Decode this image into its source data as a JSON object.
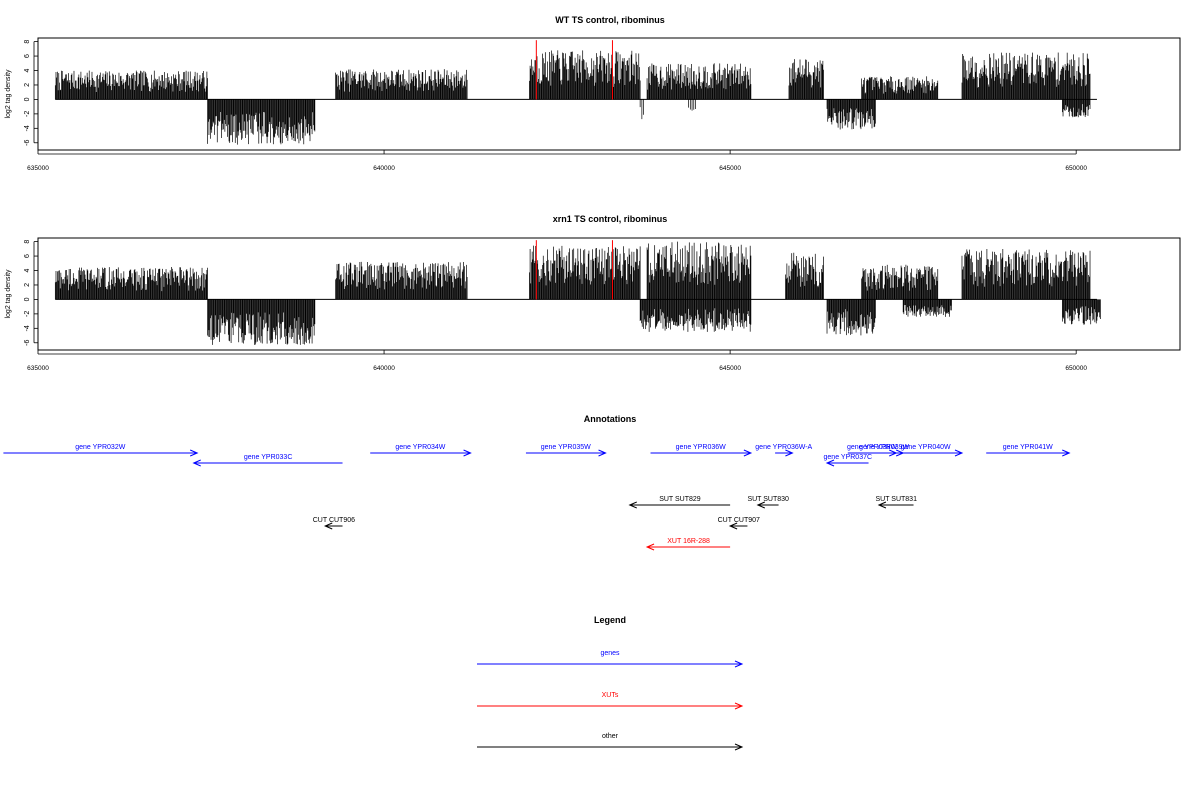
{
  "chart_data": [
    {
      "type": "bar",
      "title": "WT TS control, ribominus",
      "xlabel": "",
      "ylabel": "log2 tag density",
      "xlim": [
        635000,
        651500
      ],
      "ylim": [
        -7,
        8.5
      ],
      "xticks": [
        635000,
        640000,
        645000,
        650000
      ],
      "yticks": [
        -6,
        -4,
        -2,
        0,
        2,
        4,
        6,
        8
      ],
      "baseline_range": [
        635250,
        650300
      ],
      "red_markers": [
        642200,
        643300
      ],
      "plus_strand_regions": [
        {
          "start": 635250,
          "end": 637450,
          "max": 4.0
        },
        {
          "start": 639300,
          "end": 641200,
          "max": 4.2
        },
        {
          "start": 642100,
          "end": 643700,
          "max": 6.8
        },
        {
          "start": 643800,
          "end": 645300,
          "max": 5.0
        },
        {
          "start": 645850,
          "end": 646350,
          "max": 5.8
        },
        {
          "start": 646900,
          "end": 648000,
          "max": 3.2
        },
        {
          "start": 648350,
          "end": 650200,
          "max": 6.5
        }
      ],
      "minus_strand_regions": [
        {
          "start": 637450,
          "end": 639000,
          "min": -6.3
        },
        {
          "start": 643700,
          "end": 643750,
          "min": -3.0
        },
        {
          "start": 644400,
          "end": 644500,
          "min": -2.0
        },
        {
          "start": 646400,
          "end": 647100,
          "min": -4.2
        },
        {
          "start": 649800,
          "end": 650200,
          "min": -2.5
        }
      ]
    },
    {
      "type": "bar",
      "title": "xrn1 TS control, ribominus",
      "xlabel": "",
      "ylabel": "log2 tag density",
      "xlim": [
        635000,
        651500
      ],
      "ylim": [
        -7,
        8.5
      ],
      "xticks": [
        635000,
        640000,
        645000,
        650000
      ],
      "yticks": [
        -6,
        -4,
        -2,
        0,
        2,
        4,
        6,
        8
      ],
      "baseline_range": [
        635250,
        650300
      ],
      "red_markers": [
        642200,
        643300
      ],
      "plus_strand_regions": [
        {
          "start": 635250,
          "end": 637450,
          "max": 4.5
        },
        {
          "start": 639300,
          "end": 641200,
          "max": 5.2
        },
        {
          "start": 642100,
          "end": 643700,
          "max": 7.5
        },
        {
          "start": 643800,
          "end": 645300,
          "max": 8.0
        },
        {
          "start": 645800,
          "end": 646350,
          "max": 6.5
        },
        {
          "start": 646900,
          "end": 648000,
          "max": 4.8
        },
        {
          "start": 648350,
          "end": 650200,
          "max": 7.0
        }
      ],
      "minus_strand_regions": [
        {
          "start": 637450,
          "end": 639000,
          "min": -6.3
        },
        {
          "start": 643700,
          "end": 645300,
          "min": -4.5
        },
        {
          "start": 646400,
          "end": 647100,
          "min": -5.0
        },
        {
          "start": 647500,
          "end": 648200,
          "min": -2.5
        },
        {
          "start": 649800,
          "end": 650350,
          "min": -3.5
        }
      ]
    }
  ],
  "annotations": {
    "title": "Annotations",
    "genomic_range": [
      635000,
      651500
    ],
    "items": [
      {
        "label": "gene YPR032W",
        "start": 634500,
        "end": 637300,
        "strand": "+",
        "row": 0,
        "color": "#0000ff"
      },
      {
        "label": "gene YPR033C",
        "start": 637250,
        "end": 639400,
        "strand": "-",
        "row": 1,
        "color": "#0000ff"
      },
      {
        "label": "gene YPR034W",
        "start": 639800,
        "end": 641250,
        "strand": "+",
        "row": 0,
        "color": "#0000ff"
      },
      {
        "label": "gene YPR035W",
        "start": 642050,
        "end": 643200,
        "strand": "+",
        "row": 0,
        "color": "#0000ff"
      },
      {
        "label": "gene YPR036W",
        "start": 643850,
        "end": 645300,
        "strand": "+",
        "row": 0,
        "color": "#0000ff"
      },
      {
        "label": "gene YPR036W-A",
        "start": 645650,
        "end": 645900,
        "strand": "+",
        "row": 0,
        "color": "#0000ff"
      },
      {
        "label": "gene YPR037C",
        "start": 646400,
        "end": 647000,
        "strand": "-",
        "row": 1,
        "color": "#0000ff"
      },
      {
        "label": "gene YPR038W",
        "start": 646700,
        "end": 647400,
        "strand": "+",
        "row": 0,
        "color": "#0000ff"
      },
      {
        "label": "gene YPR039W",
        "start": 646950,
        "end": 647500,
        "strand": "+",
        "row": 0,
        "color": "#0000ff"
      },
      {
        "label": "gene YPR040W",
        "start": 647300,
        "end": 648350,
        "strand": "+",
        "row": 0,
        "color": "#0000ff"
      },
      {
        "label": "gene YPR041W",
        "start": 648700,
        "end": 649900,
        "strand": "+",
        "row": 0,
        "color": "#0000ff"
      },
      {
        "label": "SUT SUT829",
        "start": 643550,
        "end": 645000,
        "strand": "-",
        "row": 3,
        "color": "#000000"
      },
      {
        "label": "SUT SUT830",
        "start": 645400,
        "end": 645700,
        "strand": "-",
        "row": 3,
        "color": "#000000"
      },
      {
        "label": "SUT SUT831",
        "start": 647150,
        "end": 647650,
        "strand": "-",
        "row": 3,
        "color": "#000000"
      },
      {
        "label": "CUT CUT906",
        "start": 639150,
        "end": 639400,
        "strand": "-",
        "row": 4,
        "color": "#000000"
      },
      {
        "label": "CUT CUT907",
        "start": 645000,
        "end": 645250,
        "strand": "-",
        "row": 4,
        "color": "#000000"
      },
      {
        "label": "XUT 16R-288",
        "start": 643800,
        "end": 645000,
        "strand": "-",
        "row": 5,
        "color": "#ff0000"
      }
    ]
  },
  "legend": {
    "title": "Legend",
    "entries": [
      {
        "label": "genes",
        "color": "#0000ff"
      },
      {
        "label": "XUTs",
        "color": "#ff0000"
      },
      {
        "label": "other",
        "color": "#000000"
      }
    ]
  }
}
